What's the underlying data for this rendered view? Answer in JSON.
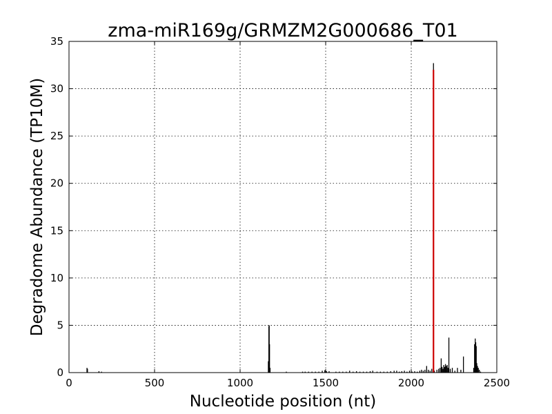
{
  "chart_data": {
    "type": "bar",
    "title": "zma-miR169g/GRMZM2G000686_T01",
    "xlabel": "Nucleotide position (nt)",
    "ylabel": "Degradome Abundance (TP10M)",
    "xlim": [
      0,
      2500
    ],
    "ylim": [
      0,
      35
    ],
    "xticks": [
      "0",
      "500",
      "1000",
      "1500",
      "2000",
      "2500"
    ],
    "yticks": [
      "0",
      "5",
      "10",
      "15",
      "20",
      "25",
      "30",
      "35"
    ],
    "grid": true,
    "series": [
      {
        "color": "#000000",
        "points": [
          [
            105,
            0.5
          ],
          [
            108,
            0.4
          ],
          [
            175,
            0.15
          ],
          [
            190,
            0.1
          ],
          [
            1165,
            1.2
          ],
          [
            1168,
            4.9
          ],
          [
            1170,
            5.0
          ],
          [
            1172,
            3.0
          ],
          [
            1175,
            0.5
          ],
          [
            1270,
            0.1
          ],
          [
            1365,
            0.1
          ],
          [
            1380,
            0.1
          ],
          [
            1400,
            0.1
          ],
          [
            1420,
            0.1
          ],
          [
            1440,
            0.1
          ],
          [
            1460,
            0.1
          ],
          [
            1480,
            0.2
          ],
          [
            1495,
            0.25
          ],
          [
            1505,
            0.15
          ],
          [
            1520,
            0.15
          ],
          [
            1560,
            0.1
          ],
          [
            1580,
            0.1
          ],
          [
            1600,
            0.1
          ],
          [
            1620,
            0.1
          ],
          [
            1640,
            0.2
          ],
          [
            1660,
            0.1
          ],
          [
            1680,
            0.15
          ],
          [
            1700,
            0.1
          ],
          [
            1720,
            0.1
          ],
          [
            1740,
            0.1
          ],
          [
            1760,
            0.15
          ],
          [
            1775,
            0.2
          ],
          [
            1800,
            0.1
          ],
          [
            1820,
            0.1
          ],
          [
            1840,
            0.1
          ],
          [
            1860,
            0.1
          ],
          [
            1880,
            0.15
          ],
          [
            1900,
            0.2
          ],
          [
            1915,
            0.2
          ],
          [
            1930,
            0.1
          ],
          [
            1945,
            0.15
          ],
          [
            1960,
            0.2
          ],
          [
            1975,
            0.1
          ],
          [
            1990,
            0.2
          ],
          [
            2005,
            0.1
          ],
          [
            2020,
            0.15
          ],
          [
            2035,
            0.1
          ],
          [
            2050,
            0.2
          ],
          [
            2060,
            0.3
          ],
          [
            2070,
            0.2
          ],
          [
            2080,
            0.3
          ],
          [
            2090,
            0.7
          ],
          [
            2100,
            0.3
          ],
          [
            2110,
            0.2
          ],
          [
            2120,
            0.4
          ],
          [
            2130,
            32.7
          ],
          [
            2135,
            0.2
          ],
          [
            2150,
            0.3
          ],
          [
            2160,
            0.4
          ],
          [
            2168,
            0.5
          ],
          [
            2175,
            1.5
          ],
          [
            2180,
            0.6
          ],
          [
            2185,
            0.4
          ],
          [
            2190,
            0.8
          ],
          [
            2195,
            0.6
          ],
          [
            2200,
            0.9
          ],
          [
            2205,
            0.7
          ],
          [
            2210,
            0.8
          ],
          [
            2215,
            0.5
          ],
          [
            2220,
            3.7
          ],
          [
            2228,
            0.4
          ],
          [
            2240,
            0.5
          ],
          [
            2255,
            0.2
          ],
          [
            2270,
            0.5
          ],
          [
            2290,
            0.3
          ],
          [
            2305,
            1.7
          ],
          [
            2365,
            0.5
          ],
          [
            2370,
            3.0
          ],
          [
            2374,
            3.6
          ],
          [
            2377,
            3.2
          ],
          [
            2380,
            2.8
          ],
          [
            2383,
            1.0
          ],
          [
            2387,
            0.7
          ],
          [
            2392,
            0.5
          ],
          [
            2398,
            0.3
          ],
          [
            2405,
            0.1
          ]
        ]
      },
      {
        "color": "#cc0000",
        "points": [
          [
            2130,
            32.0
          ]
        ]
      }
    ]
  }
}
